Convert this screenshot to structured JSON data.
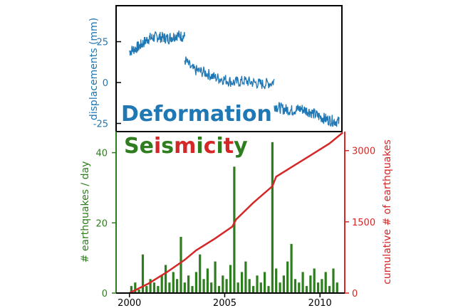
{
  "colors": {
    "deformation": "#1f77b4",
    "seismicity_green": "#2e7d1e",
    "seismicity_red": "#d62728",
    "frame": "#000000"
  },
  "chart_data": [
    {
      "type": "line",
      "title": "Deformation",
      "xlabel": "",
      "ylabel": "displacements (mm)",
      "xlim": [
        1999.3,
        2011.3
      ],
      "ylim": [
        -30,
        47
      ],
      "yticks": [
        "25",
        "0",
        "-25"
      ],
      "ytick_values": [
        25,
        0,
        -25
      ],
      "series": [
        {
          "name": "displacement",
          "segments": [
            {
              "x": [
                2000.0,
                2000.5,
                2001.0,
                2001.5,
                2002.0,
                2002.5,
                2002.9
              ],
              "y": [
                19,
                22,
                27,
                28,
                27,
                29,
                28
              ]
            },
            {
              "x": [
                2002.9,
                2003.3,
                2004.0,
                2004.5,
                2005.0,
                2005.5,
                2006.0,
                2006.5,
                2007.0,
                2007.5,
                2007.6
              ],
              "y": [
                14,
                8,
                6,
                3,
                2,
                0,
                1,
                0,
                -1,
                0,
                1
              ]
            },
            {
              "x": [
                2007.6,
                2008.0,
                2008.5,
                2009.0,
                2009.5,
                2010.0,
                2010.5,
                2011.0
              ],
              "y": [
                -14,
                -16,
                -17,
                -16,
                -18,
                -21,
                -23,
                -24
              ]
            }
          ]
        }
      ]
    },
    {
      "type": "bar",
      "title": "Seismicity",
      "title_letters": [
        {
          "ch": "S",
          "color": "#2e7d1e"
        },
        {
          "ch": "e",
          "color": "#2e7d1e"
        },
        {
          "ch": "i",
          "color": "#d62728"
        },
        {
          "ch": "s",
          "color": "#2e7d1e"
        },
        {
          "ch": "m",
          "color": "#d62728"
        },
        {
          "ch": "i",
          "color": "#2e7d1e"
        },
        {
          "ch": "c",
          "color": "#d62728"
        },
        {
          "ch": "i",
          "color": "#2e7d1e"
        },
        {
          "ch": "t",
          "color": "#d62728"
        },
        {
          "ch": "y",
          "color": "#2e7d1e"
        }
      ],
      "xlabel": "",
      "ylabel": "# earthquakes / day",
      "y2label": "cumulative # of earthquakes",
      "xlim": [
        1999.3,
        2011.3
      ],
      "ylim": [
        0,
        46
      ],
      "y2lim": [
        0,
        3400
      ],
      "xticks": [
        "2000",
        "2005",
        "2010"
      ],
      "xtick_values": [
        2000,
        2005,
        2010
      ],
      "yticks": [
        "0",
        "20",
        "40"
      ],
      "ytick_values": [
        0,
        20,
        40
      ],
      "y2ticks": [
        "0",
        "1500",
        "3000"
      ],
      "y2tick_values": [
        0,
        1500,
        3000
      ],
      "series": [
        {
          "name": "earthquakes per day",
          "x": [
            2000.1,
            2000.3,
            2000.5,
            2000.7,
            2000.9,
            2001.1,
            2001.3,
            2001.5,
            2001.7,
            2001.9,
            2002.1,
            2002.3,
            2002.5,
            2002.7,
            2002.9,
            2003.1,
            2003.3,
            2003.5,
            2003.7,
            2003.9,
            2004.1,
            2004.3,
            2004.5,
            2004.7,
            2004.9,
            2005.1,
            2005.3,
            2005.5,
            2005.7,
            2005.9,
            2006.1,
            2006.3,
            2006.5,
            2006.7,
            2006.9,
            2007.1,
            2007.3,
            2007.5,
            2007.7,
            2007.9,
            2008.1,
            2008.3,
            2008.5,
            2008.7,
            2008.9,
            2009.1,
            2009.3,
            2009.5,
            2009.7,
            2009.9,
            2010.1,
            2010.3,
            2010.5,
            2010.7,
            2010.9
          ],
          "values": [
            2,
            3,
            1,
            11,
            2,
            4,
            3,
            2,
            5,
            8,
            3,
            6,
            4,
            16,
            3,
            5,
            2,
            6,
            11,
            4,
            7,
            3,
            9,
            2,
            5,
            4,
            8,
            36,
            3,
            6,
            9,
            4,
            2,
            5,
            3,
            6,
            2,
            43,
            7,
            3,
            5,
            9,
            14,
            4,
            3,
            6,
            2,
            5,
            7,
            3,
            4,
            6,
            2,
            7,
            3
          ]
        },
        {
          "name": "cumulative earthquakes",
          "x": [
            2000.0,
            2001.0,
            2002.0,
            2002.9,
            2003.5,
            2004.5,
            2005.4,
            2005.6,
            2006.5,
            2007.5,
            2007.7,
            2008.5,
            2009.5,
            2010.5,
            2011.2
          ],
          "values": [
            0,
            200,
            450,
            700,
            900,
            1150,
            1400,
            1550,
            1900,
            2250,
            2450,
            2650,
            2900,
            3150,
            3380
          ]
        }
      ]
    }
  ]
}
